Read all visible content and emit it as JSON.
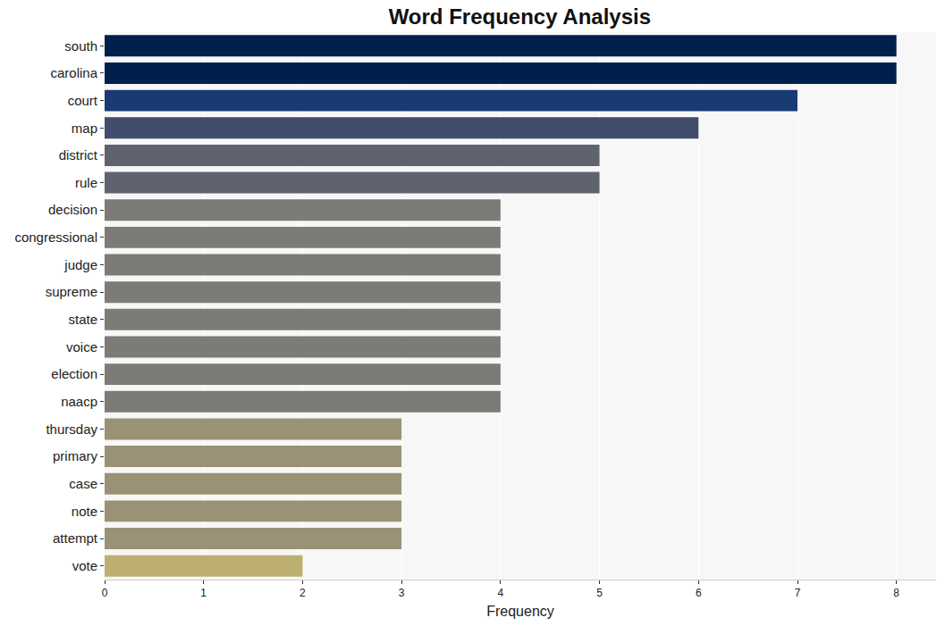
{
  "chart_data": {
    "type": "bar",
    "orientation": "horizontal",
    "title": "Word Frequency Analysis",
    "x_label": "Frequency",
    "categories": [
      "south",
      "carolina",
      "court",
      "map",
      "district",
      "rule",
      "decision",
      "congressional",
      "judge",
      "supreme",
      "state",
      "voice",
      "election",
      "naacp",
      "thursday",
      "primary",
      "case",
      "note",
      "attempt",
      "vote"
    ],
    "values": [
      8,
      8,
      7,
      6,
      5,
      5,
      4,
      4,
      4,
      4,
      4,
      4,
      4,
      4,
      3,
      3,
      3,
      3,
      3,
      2
    ],
    "colors": [
      "#00204c",
      "#00204c",
      "#1a3a73",
      "#414d6b",
      "#5f636e",
      "#5f636e",
      "#7c7b78",
      "#7c7b78",
      "#7c7b78",
      "#7c7b78",
      "#7c7b78",
      "#7c7b78",
      "#7c7b78",
      "#7c7b78",
      "#9a9276",
      "#9a9276",
      "#9a9276",
      "#9a9276",
      "#9a9276",
      "#bcaf6f"
    ],
    "xlim": [
      0,
      8.4
    ],
    "xticks": [
      0,
      1,
      2,
      3,
      4,
      5,
      6,
      7,
      8
    ],
    "grid": true
  }
}
